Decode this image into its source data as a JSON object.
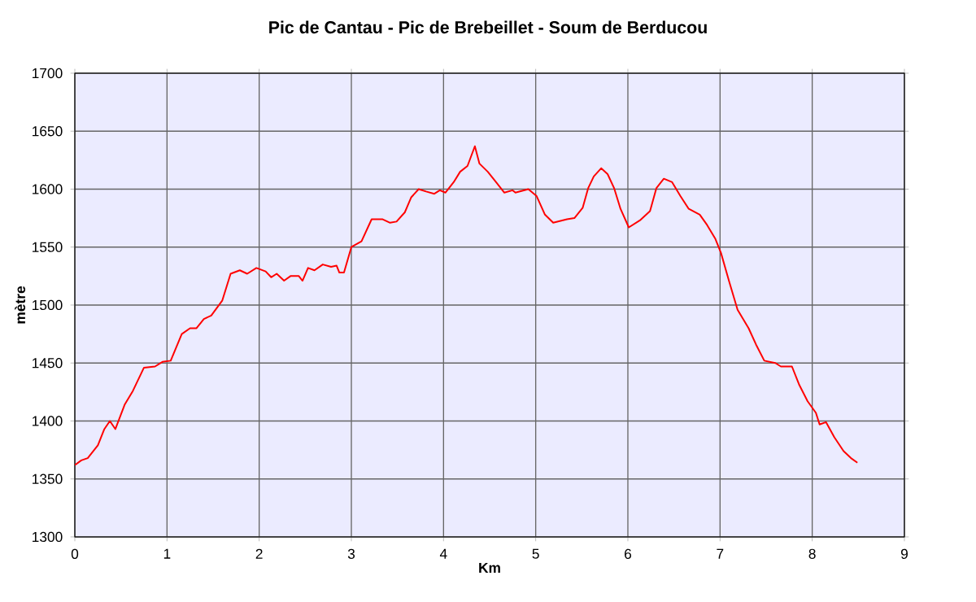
{
  "chart_data": {
    "type": "line",
    "title": "Pic de Cantau - Pic de Brebeillet - Soum de Berducou",
    "xlabel": "Km",
    "ylabel": "mètre",
    "xlim": [
      0,
      9
    ],
    "xticks": [
      0,
      1,
      2,
      3,
      4,
      5,
      6,
      7,
      8,
      9
    ],
    "ylim": [
      1300,
      1700
    ],
    "yticks": [
      1300,
      1350,
      1400,
      1450,
      1500,
      1550,
      1600,
      1650,
      1700
    ],
    "grid": true,
    "marker": "none",
    "line_style": "solid",
    "series": [
      {
        "color": "#ff0000",
        "x": [
          0,
          0.07,
          0.14,
          0.25,
          0.32,
          0.38,
          0.44,
          0.54,
          0.63,
          0.75,
          0.87,
          0.95,
          1.04,
          1.16,
          1.25,
          1.32,
          1.4,
          1.48,
          1.6,
          1.69,
          1.79,
          1.87,
          1.97,
          2.07,
          2.13,
          2.19,
          2.27,
          2.34,
          2.43,
          2.47,
          2.53,
          2.6,
          2.69,
          2.78,
          2.84,
          2.87,
          2.92,
          3.0,
          3.11,
          3.22,
          3.34,
          3.42,
          3.49,
          3.58,
          3.65,
          3.73,
          3.81,
          3.9,
          3.96,
          4.02,
          4.11,
          4.18,
          4.26,
          4.34,
          4.39,
          4.48,
          4.57,
          4.66,
          4.75,
          4.78,
          4.92,
          5.01,
          5.1,
          5.19,
          5.34,
          5.42,
          5.51,
          5.57,
          5.63,
          5.71,
          5.78,
          5.85,
          5.92,
          6.01,
          6.13,
          6.24,
          6.31,
          6.39,
          6.48,
          6.57,
          6.66,
          6.78,
          6.86,
          6.95,
          7.01,
          7.1,
          7.19,
          7.31,
          7.39,
          7.48,
          7.6,
          7.66,
          7.78,
          7.86,
          7.95,
          8.04,
          8.08,
          8.15,
          8.24,
          8.34,
          8.42,
          8.49
        ],
        "values": [
          1362,
          1366,
          1368,
          1379,
          1393,
          1400,
          1393,
          1414,
          1426,
          1446,
          1447,
          1451,
          1452,
          1475,
          1480,
          1480,
          1488,
          1491,
          1504,
          1527,
          1530,
          1527,
          1532,
          1529,
          1524,
          1527,
          1521,
          1525,
          1525,
          1521,
          1532,
          1530,
          1535,
          1533,
          1534,
          1528,
          1528,
          1550,
          1555,
          1574,
          1574,
          1571,
          1572,
          1580,
          1593,
          1600,
          1598,
          1596,
          1599,
          1597,
          1606,
          1615,
          1620,
          1637,
          1622,
          1615,
          1606,
          1597,
          1599,
          1597,
          1600,
          1594,
          1578,
          1571,
          1574,
          1575,
          1584,
          1601,
          1611,
          1618,
          1613,
          1601,
          1583,
          1567,
          1573,
          1581,
          1601,
          1609,
          1606,
          1594,
          1583,
          1578,
          1569,
          1557,
          1545,
          1520,
          1496,
          1480,
          1466,
          1452,
          1450,
          1447,
          1447,
          1431,
          1417,
          1407,
          1397,
          1399,
          1386,
          1374,
          1368,
          1364
        ]
      }
    ]
  }
}
